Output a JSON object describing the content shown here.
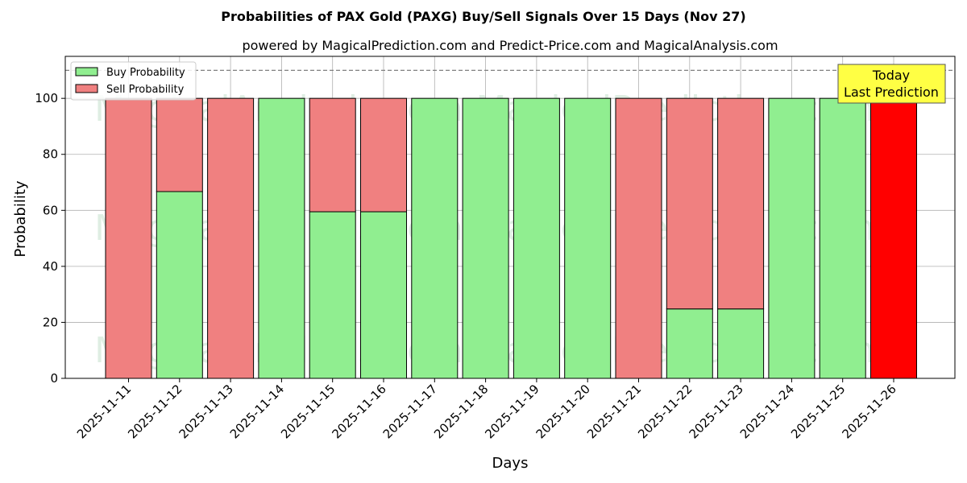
{
  "chart_data": {
    "type": "bar",
    "title": "Probabilities of PAX Gold (PAXG) Buy/Sell Signals Over 15 Days (Nov 27)",
    "subtitle": "powered by MagicalPrediction.com and Predict-Price.com and MagicalAnalysis.com",
    "xlabel": "Days",
    "ylabel": "Probability",
    "ylim": [
      0,
      115
    ],
    "yticks": [
      0,
      20,
      40,
      60,
      80,
      100
    ],
    "grid": true,
    "legend_placement": "top-left",
    "reference_line": 110,
    "categories": [
      "2025-11-11",
      "2025-11-12",
      "2025-11-13",
      "2025-11-14",
      "2025-11-15",
      "2025-11-16",
      "2025-11-17",
      "2025-11-18",
      "2025-11-19",
      "2025-11-20",
      "2025-11-21",
      "2025-11-22",
      "2025-11-23",
      "2025-11-24",
      "2025-11-25",
      "2025-11-26"
    ],
    "series": [
      {
        "name": "Buy Probability",
        "color": "#90ee90",
        "values": [
          0,
          66.7,
          0,
          100,
          59.5,
          59.5,
          100,
          100,
          100,
          100,
          0,
          24.8,
          24.8,
          100,
          100,
          0
        ]
      },
      {
        "name": "Sell Probability",
        "color": "#f08080",
        "values": [
          100,
          33.3,
          100,
          0,
          40.5,
          40.5,
          0,
          0,
          0,
          0,
          100,
          75.2,
          75.2,
          0,
          0,
          100
        ]
      }
    ],
    "highlight": {
      "index": 15,
      "color": "#ff0000"
    },
    "annotation": {
      "lines": [
        "Today",
        "Last Prediction"
      ],
      "bg": "#ffff44"
    },
    "watermarks": [
      "MagicalAnalysis.com",
      "MagicalPrediction.com"
    ]
  }
}
